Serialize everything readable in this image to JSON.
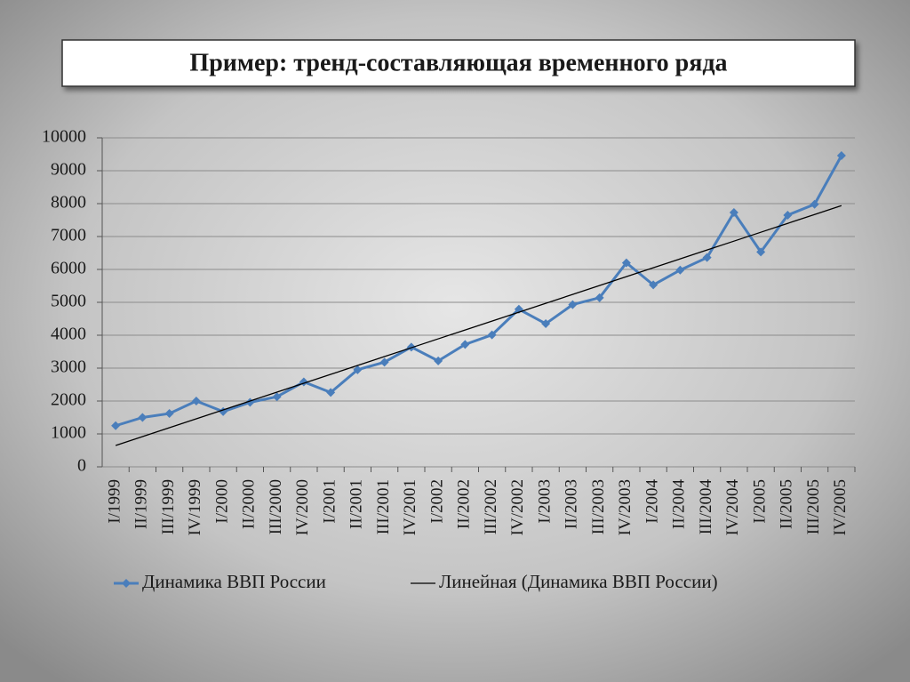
{
  "chart_data": {
    "type": "line",
    "title": "Пример: тренд-составляющая временного ряда",
    "categories": [
      "I/1999",
      "II/1999",
      "III/1999",
      "IV/1999",
      "I/2000",
      "II/2000",
      "III/2000",
      "IV/2000",
      "I/2001",
      "II/2001",
      "III/2001",
      "IV/2001",
      "I/2002",
      "II/2002",
      "III/2002",
      "IV/2002",
      "I/2003",
      "II/2003",
      "III/2003",
      "IV/2003",
      "I/2004",
      "II/2004",
      "III/2004",
      "IV/2004",
      "I/2005",
      "II/2005",
      "III/2005",
      "IV/2005"
    ],
    "series": [
      {
        "name": "Динамика ВВП России",
        "color": "#4a7ebb",
        "marker": "diamond",
        "values": [
          1250,
          1500,
          1620,
          2000,
          1680,
          1960,
          2130,
          2580,
          2260,
          2950,
          3180,
          3640,
          3220,
          3720,
          4010,
          4790,
          4350,
          4930,
          5140,
          6200,
          5530,
          5980,
          6360,
          7730,
          6530,
          7650,
          7980,
          9460
        ]
      },
      {
        "name": "Линейная (Динамика ВВП России)",
        "color": "#000000",
        "marker": "none",
        "values": [
          650,
          920,
          1190,
          1460,
          1730,
          2000,
          2270,
          2540,
          2810,
          3080,
          3350,
          3620,
          3890,
          4160,
          4430,
          4700,
          4970,
          5240,
          5510,
          5780,
          6050,
          6320,
          6590,
          6860,
          7130,
          7400,
          7670,
          7940
        ]
      }
    ],
    "ylim": [
      0,
      10000
    ],
    "yticks": [
      0,
      1000,
      2000,
      3000,
      4000,
      5000,
      6000,
      7000,
      8000,
      9000,
      10000
    ],
    "grid": true,
    "legend": "bottom"
  }
}
